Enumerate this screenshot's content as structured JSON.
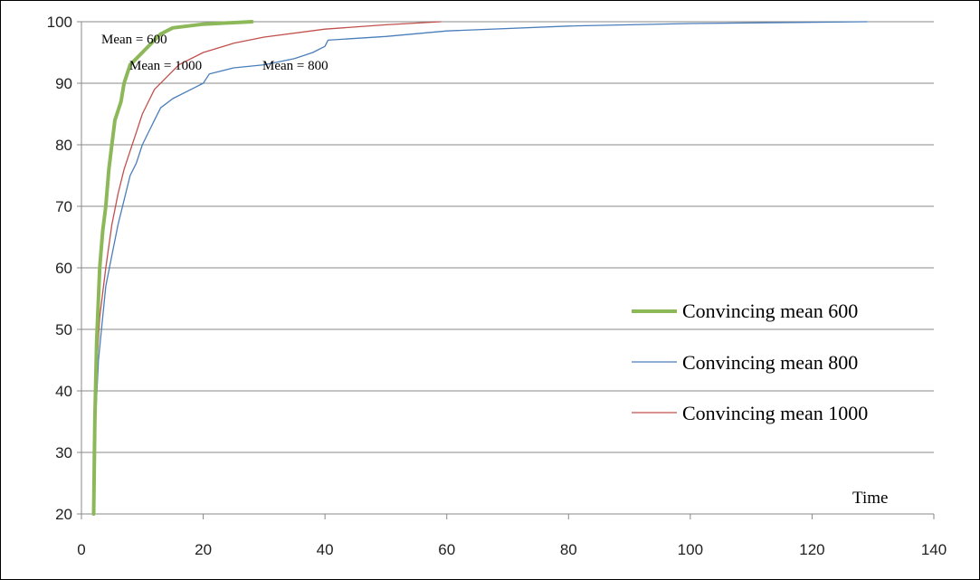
{
  "chart_data": {
    "type": "line",
    "title": "",
    "xlabel": "Time",
    "ylabel": "",
    "xlim": [
      0,
      140
    ],
    "ylim": [
      20,
      100
    ],
    "xticks": [
      "0",
      "20",
      "40",
      "60",
      "80",
      "100",
      "120",
      "140"
    ],
    "yticks": [
      "20",
      "30",
      "40",
      "50",
      "60",
      "70",
      "80",
      "90",
      "100"
    ],
    "grid": "horizontal",
    "legend_position": "center-right",
    "series": [
      {
        "name": "Convincing mean 600",
        "color": "#8db85a",
        "points": [
          [
            2,
            20
          ],
          [
            2.2,
            35
          ],
          [
            2.5,
            48
          ],
          [
            3,
            60
          ],
          [
            3.5,
            66
          ],
          [
            4,
            70
          ],
          [
            4.5,
            76
          ],
          [
            5,
            80
          ],
          [
            5.5,
            84
          ],
          [
            6.5,
            87
          ],
          [
            7,
            90
          ],
          [
            8,
            93
          ],
          [
            9,
            94
          ],
          [
            10,
            95
          ],
          [
            12,
            97
          ],
          [
            13,
            98
          ],
          [
            15,
            99
          ],
          [
            20,
            99.6
          ],
          [
            28,
            100
          ]
        ]
      },
      {
        "name": "Convincing mean 800",
        "color": "#4a7ebb",
        "points": [
          [
            2,
            20
          ],
          [
            2.3,
            35
          ],
          [
            2.8,
            45
          ],
          [
            3.5,
            52
          ],
          [
            4,
            57
          ],
          [
            5,
            62
          ],
          [
            6,
            67
          ],
          [
            7,
            71
          ],
          [
            8,
            75
          ],
          [
            9,
            77
          ],
          [
            10,
            80
          ],
          [
            11,
            82
          ],
          [
            12,
            84
          ],
          [
            13,
            86
          ],
          [
            15,
            87.5
          ],
          [
            18,
            89
          ],
          [
            20,
            90
          ],
          [
            21,
            91.5
          ],
          [
            25,
            92.5
          ],
          [
            30,
            93
          ],
          [
            35,
            94
          ],
          [
            38,
            95
          ],
          [
            40,
            96
          ],
          [
            40.5,
            97
          ],
          [
            50,
            97.6
          ],
          [
            60,
            98.5
          ],
          [
            80,
            99.3
          ],
          [
            100,
            99.7
          ],
          [
            129,
            100
          ]
        ]
      },
      {
        "name": "Convincing mean 1000",
        "color": "#c0504d",
        "points": [
          [
            2,
            20
          ],
          [
            2.3,
            40
          ],
          [
            3,
            52
          ],
          [
            4,
            60
          ],
          [
            5,
            67
          ],
          [
            6,
            72
          ],
          [
            7,
            76
          ],
          [
            8,
            79
          ],
          [
            9,
            82
          ],
          [
            10,
            85
          ],
          [
            11,
            87
          ],
          [
            12,
            89
          ],
          [
            14,
            91
          ],
          [
            16,
            93
          ],
          [
            20,
            95
          ],
          [
            25,
            96.5
          ],
          [
            30,
            97.5
          ],
          [
            40,
            98.8
          ],
          [
            50,
            99.5
          ],
          [
            59,
            100
          ]
        ]
      }
    ],
    "annotations": [
      "Mean = 600",
      "Mean = 1000",
      "Mean = 800"
    ]
  }
}
